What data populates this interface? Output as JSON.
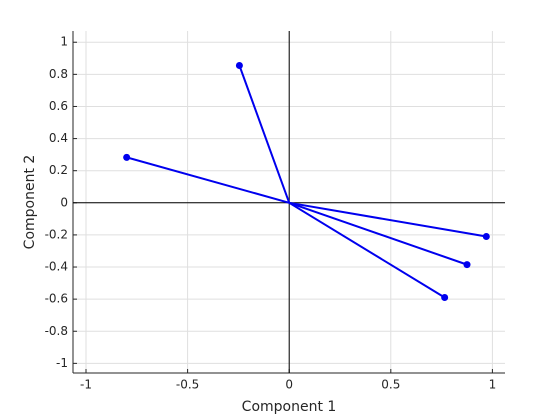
{
  "chart_data": {
    "type": "biplot",
    "x_label": "Component 1",
    "y_label": "Component 2",
    "x": [
      -0.8,
      -0.245,
      0.97,
      0.875,
      0.765
    ],
    "series": [
      {
        "color": "#0000ee",
        "values": [
          0.283,
          0.855,
          -0.21,
          -0.385,
          -0.59
        ]
      }
    ],
    "xlim": [
      -1.064,
      1.062
    ],
    "ylim": [
      -1.06,
      1.07
    ],
    "xticks": [
      -1,
      -0.5,
      0,
      0.5,
      1
    ],
    "yticks": [
      -1,
      -0.8,
      -0.6,
      -0.4,
      -0.2,
      0,
      0.2,
      0.4,
      0.6,
      0.8,
      1
    ],
    "grid": true
  }
}
